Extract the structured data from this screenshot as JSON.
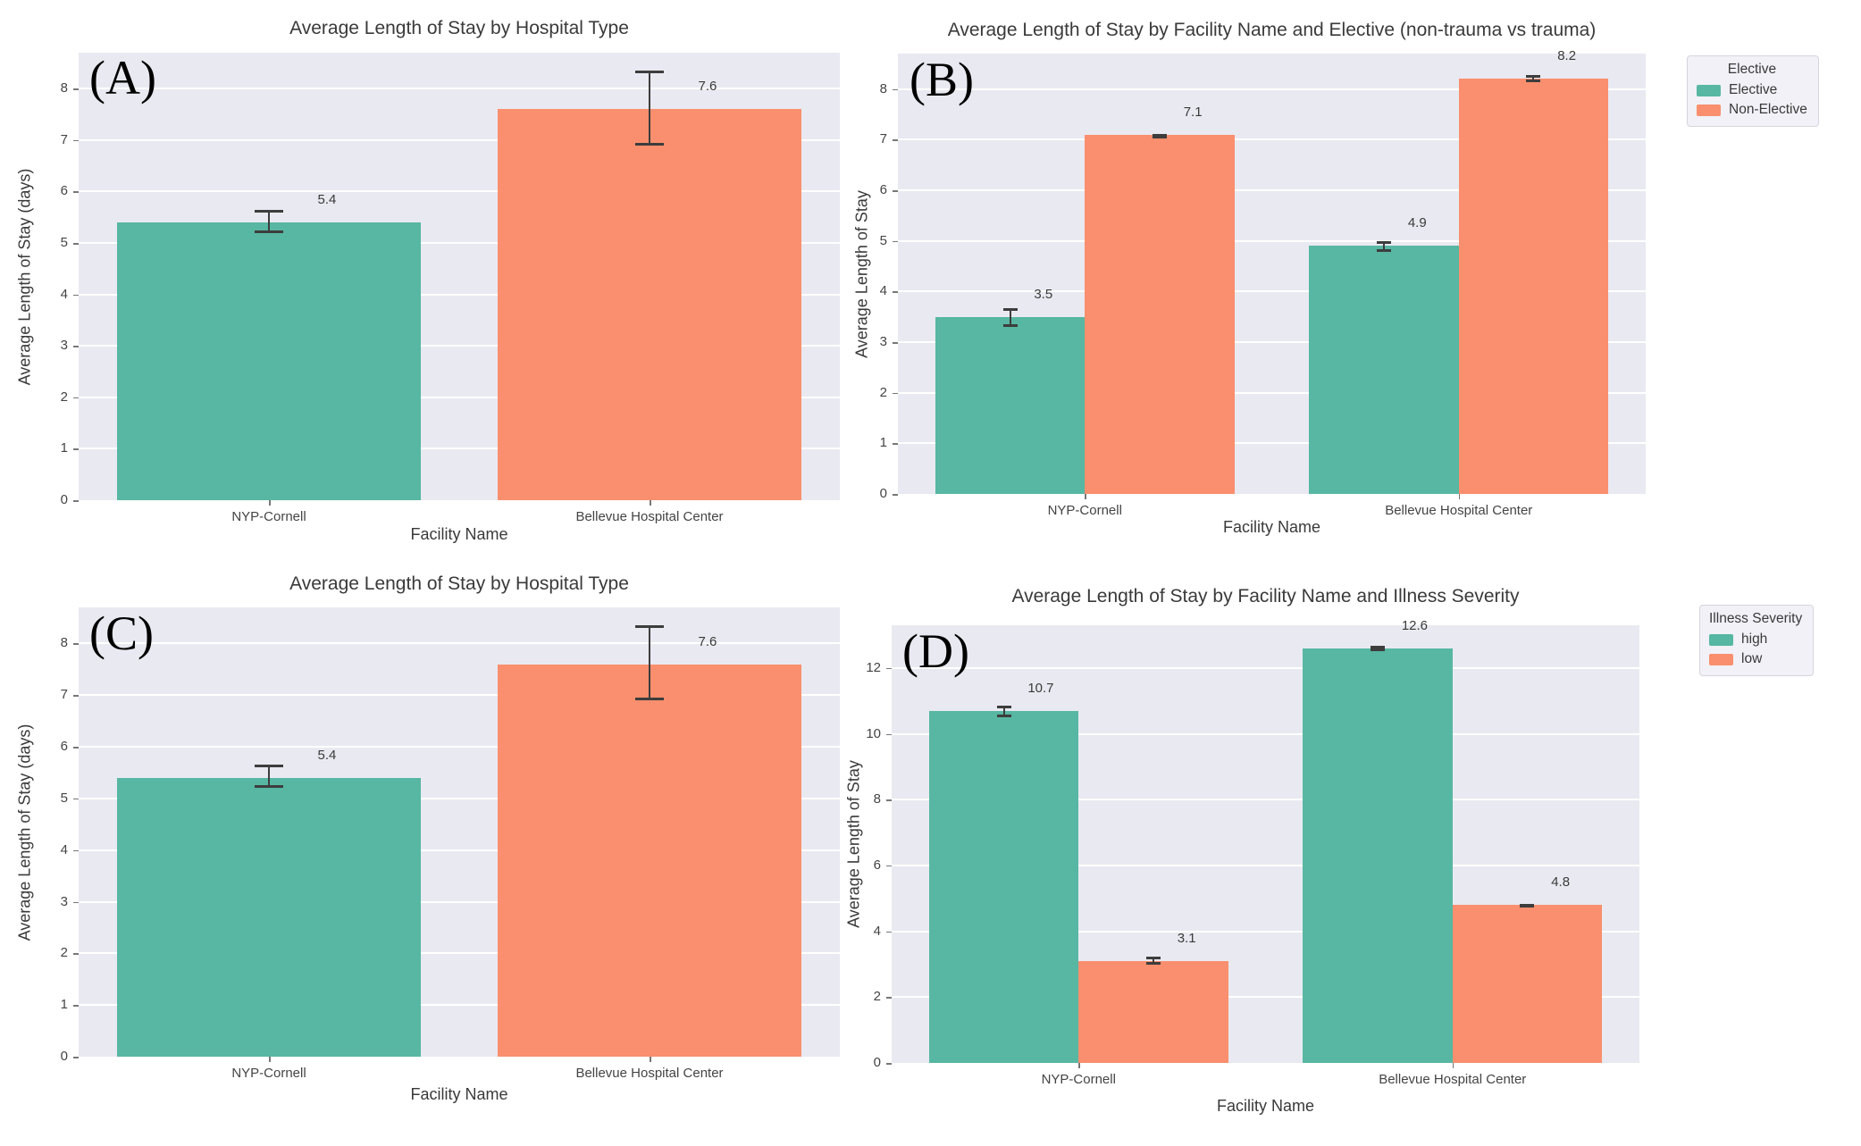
{
  "colors": {
    "green": "#57b7a2",
    "orange": "#f98f6e",
    "plot_bg": "#e9e9f1",
    "grid": "#ffffff",
    "error_bar": "#3d3d3d",
    "text": "#3a3a3a",
    "tick_text": "#444444",
    "legend_bg": "#f1f1f7",
    "legend_border": "#d5d5de"
  },
  "chart_data": [
    {
      "panel": "(A)",
      "type": "bar",
      "title": "Average Length of Stay by Hospital Type",
      "xlabel": "Facility Name",
      "ylabel": "Average Length of Stay (days)",
      "categories": [
        "NYP-Cornell",
        "Bellevue Hospital Center"
      ],
      "series": [
        {
          "name": "",
          "values": [
            5.4,
            7.6
          ],
          "bar_labels": [
            "5.4",
            "7.6"
          ],
          "colors": [
            "#57b7a2",
            "#f98f6e"
          ],
          "errors": [
            [
              5.2,
              5.65
            ],
            [
              6.9,
              8.35
            ]
          ]
        }
      ],
      "ylim": [
        0,
        8.7
      ],
      "yticks": [
        0,
        1,
        2,
        3,
        4,
        5,
        6,
        7,
        8
      ],
      "grid": true,
      "legend": null
    },
    {
      "panel": "(B)",
      "type": "bar",
      "title": "Average Length of Stay by Facility Name and Elective (non-trauma vs trauma)",
      "xlabel": "Facility Name",
      "ylabel": "Average Length of Stay",
      "categories": [
        "NYP-Cornell",
        "Bellevue Hospital Center"
      ],
      "series": [
        {
          "name": "Elective",
          "color": "#57b7a2",
          "values": [
            3.5,
            4.9
          ],
          "bar_labels": [
            "3.5",
            "4.9"
          ],
          "errors": [
            [
              3.3,
              3.67
            ],
            [
              4.78,
              5.0
            ]
          ]
        },
        {
          "name": "Non-Elective",
          "color": "#f98f6e",
          "values": [
            7.1,
            8.2
          ],
          "bar_labels": [
            "7.1",
            "8.2"
          ],
          "errors": [
            [
              7.02,
              7.12
            ],
            [
              8.13,
              8.28
            ]
          ]
        }
      ],
      "ylim": [
        0,
        8.7
      ],
      "yticks": [
        0,
        1,
        2,
        3,
        4,
        5,
        6,
        7,
        8
      ],
      "grid": true,
      "legend": {
        "title": "Elective",
        "position": "upper-right-outside"
      }
    },
    {
      "panel": "(C)",
      "type": "bar",
      "title": "Average Length of Stay by Hospital Type",
      "xlabel": "Facility Name",
      "ylabel": "Average Length of Stay (days)",
      "categories": [
        "NYP-Cornell",
        "Bellevue Hospital Center"
      ],
      "series": [
        {
          "name": "",
          "values": [
            5.4,
            7.6
          ],
          "bar_labels": [
            "5.4",
            "7.6"
          ],
          "colors": [
            "#57b7a2",
            "#f98f6e"
          ],
          "errors": [
            [
              5.2,
              5.65
            ],
            [
              6.9,
              8.35
            ]
          ]
        }
      ],
      "ylim": [
        0,
        8.7
      ],
      "yticks": [
        0,
        1,
        2,
        3,
        4,
        5,
        6,
        7,
        8
      ],
      "grid": true,
      "legend": null
    },
    {
      "panel": "(D)",
      "type": "bar",
      "title": "Average Length of Stay by Facility Name and Illness Severity",
      "xlabel": "Facility Name",
      "ylabel": "Average Length of Stay",
      "categories": [
        "NYP-Cornell",
        "Bellevue Hospital Center"
      ],
      "series": [
        {
          "name": "high",
          "color": "#57b7a2",
          "values": [
            10.7,
            12.6
          ],
          "bar_labels": [
            "10.7",
            "12.6"
          ],
          "errors": [
            [
              10.5,
              10.87
            ],
            [
              12.5,
              12.68
            ]
          ]
        },
        {
          "name": "low",
          "color": "#f98f6e",
          "values": [
            3.1,
            4.8
          ],
          "bar_labels": [
            "3.1",
            "4.8"
          ],
          "errors": [
            [
              2.98,
              3.22
            ],
            [
              4.72,
              4.82
            ]
          ]
        }
      ],
      "ylim": [
        0,
        13.3
      ],
      "yticks": [
        0,
        2,
        4,
        6,
        8,
        10,
        12
      ],
      "grid": true,
      "legend": {
        "title": "Illness Severity",
        "position": "upper-right-outside"
      }
    }
  ]
}
